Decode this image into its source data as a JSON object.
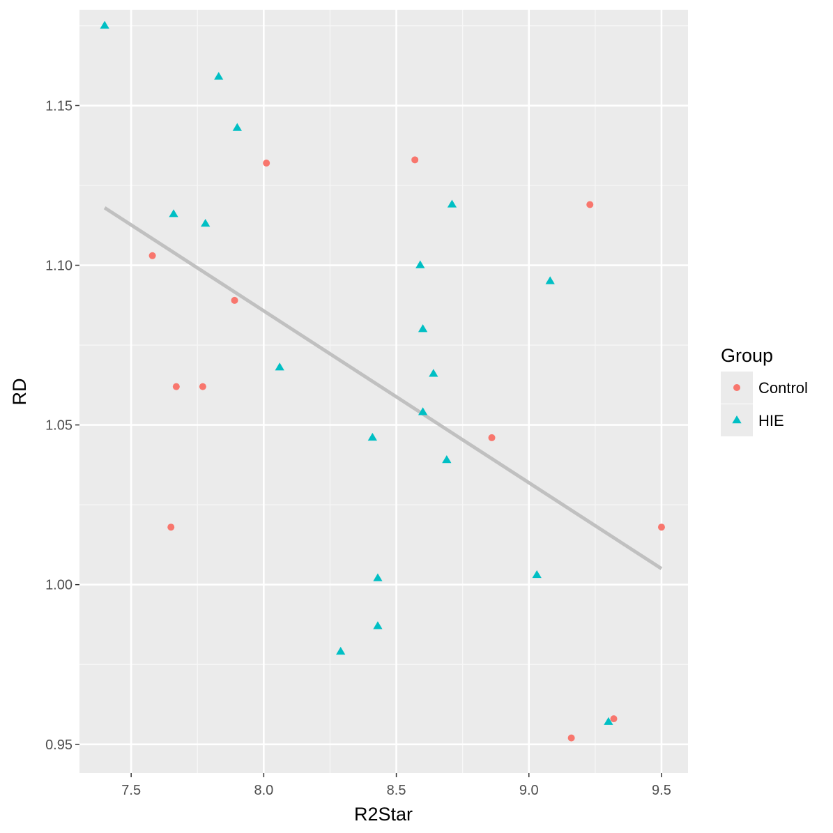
{
  "chart_data": {
    "type": "scatter",
    "title": "",
    "xlabel": "R2Star",
    "ylabel": "RD",
    "xlim": [
      7.305,
      9.6
    ],
    "ylim": [
      0.941,
      1.18
    ],
    "x_ticks": [
      7.5,
      8.0,
      8.5,
      9.0,
      9.5
    ],
    "x_tick_labels": [
      "7.5",
      "8.0",
      "8.5",
      "9.0",
      "9.5"
    ],
    "y_ticks": [
      0.95,
      1.0,
      1.05,
      1.1,
      1.15
    ],
    "y_tick_labels": [
      "0.95",
      "1.00",
      "1.05",
      "1.10",
      "1.15"
    ],
    "grid": true,
    "legend": {
      "title": "Group",
      "position": "right"
    },
    "panel_background": "#ebebeb",
    "series": [
      {
        "name": "Control",
        "shape": "circle",
        "color": "#f8766d",
        "points": [
          [
            7.58,
            1.103
          ],
          [
            7.67,
            1.062
          ],
          [
            7.77,
            1.062
          ],
          [
            7.89,
            1.089
          ],
          [
            7.65,
            1.018
          ],
          [
            8.01,
            1.132
          ],
          [
            8.57,
            1.133
          ],
          [
            8.86,
            1.046
          ],
          [
            9.23,
            1.119
          ],
          [
            9.5,
            1.018
          ],
          [
            9.16,
            0.952
          ],
          [
            9.32,
            0.958
          ]
        ]
      },
      {
        "name": "HIE",
        "shape": "triangle",
        "color": "#00bfc4",
        "points": [
          [
            7.4,
            1.175
          ],
          [
            7.83,
            1.159
          ],
          [
            7.9,
            1.143
          ],
          [
            7.66,
            1.116
          ],
          [
            7.78,
            1.113
          ],
          [
            8.06,
            1.068
          ],
          [
            8.59,
            1.1
          ],
          [
            8.6,
            1.08
          ],
          [
            8.64,
            1.066
          ],
          [
            8.6,
            1.054
          ],
          [
            8.71,
            1.119
          ],
          [
            8.41,
            1.046
          ],
          [
            8.69,
            1.039
          ],
          [
            9.08,
            1.095
          ],
          [
            9.03,
            1.003
          ],
          [
            8.43,
            1.002
          ],
          [
            8.43,
            0.987
          ],
          [
            8.29,
            0.979
          ],
          [
            9.3,
            0.957
          ]
        ]
      }
    ],
    "trend_line": {
      "color": "#bebebe",
      "start": [
        7.4,
        1.118
      ],
      "end": [
        9.5,
        1.005
      ]
    }
  }
}
